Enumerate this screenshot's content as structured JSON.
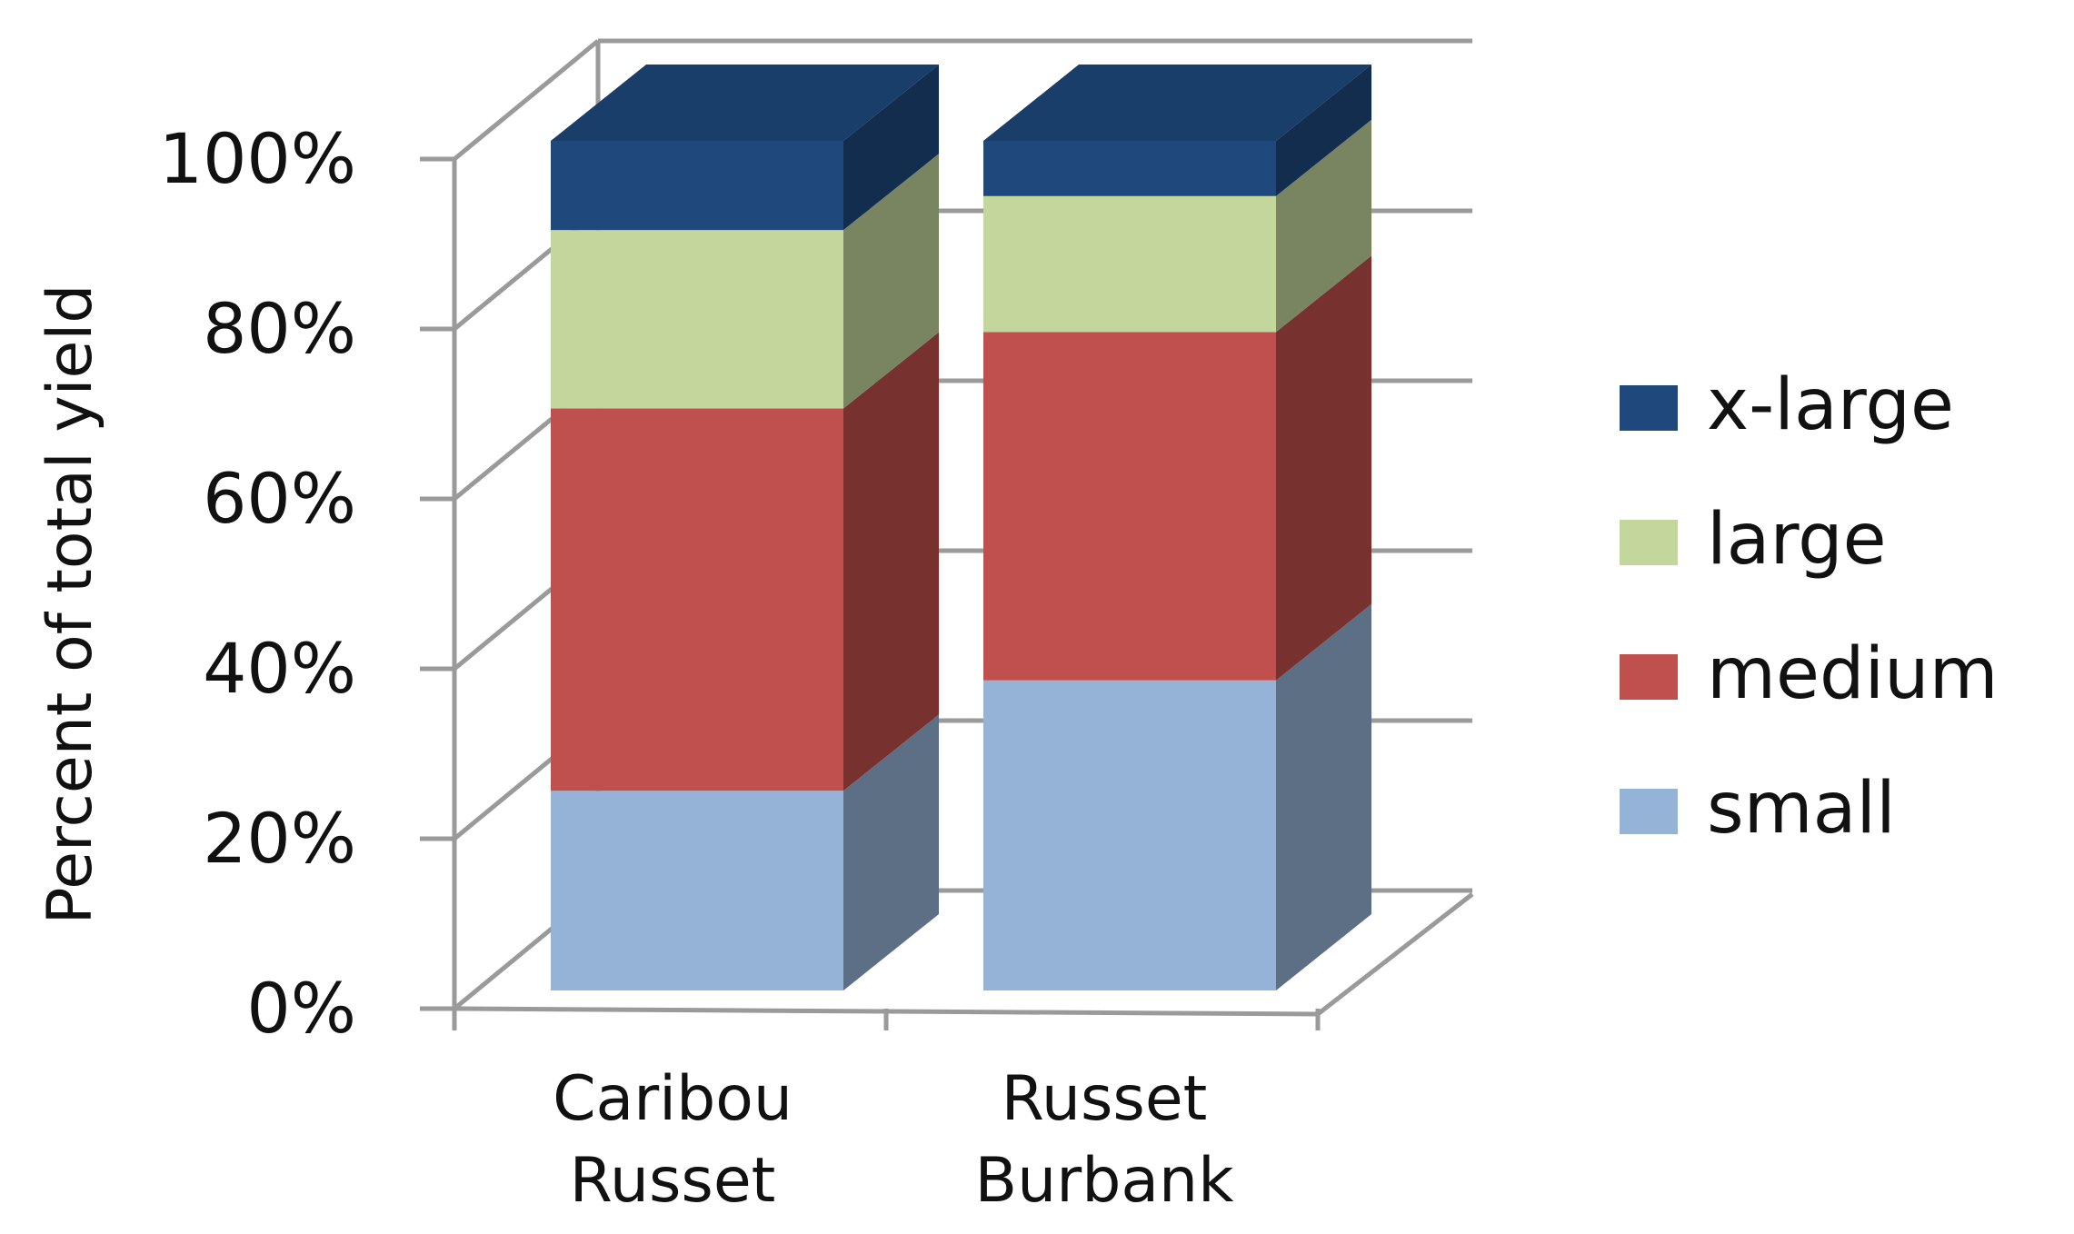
{
  "chart_data": {
    "type": "bar",
    "stacked": true,
    "percent_stacked": true,
    "three_d": true,
    "title": "",
    "xlabel": "",
    "ylabel": "Percent of total yield",
    "ylim": [
      0,
      100
    ],
    "y_ticks": [
      "0%",
      "20%",
      "40%",
      "60%",
      "80%",
      "100%"
    ],
    "categories": [
      [
        "Caribou",
        "Russet"
      ],
      [
        "Russet",
        "Burbank"
      ]
    ],
    "series": [
      {
        "name": "small",
        "color": "#95B3D7",
        "values": [
          23.5,
          36.5
        ]
      },
      {
        "name": "medium",
        "color": "#C0504D",
        "values": [
          45,
          41
        ]
      },
      {
        "name": "large",
        "color": "#C3D69B",
        "values": [
          21,
          16
        ]
      },
      {
        "name": "x-large",
        "color": "#1F497D",
        "values": [
          10.5,
          6.5
        ]
      }
    ],
    "legend_order": [
      "x-large",
      "large",
      "medium",
      "small"
    ],
    "legend_position": "right",
    "grid": true
  }
}
